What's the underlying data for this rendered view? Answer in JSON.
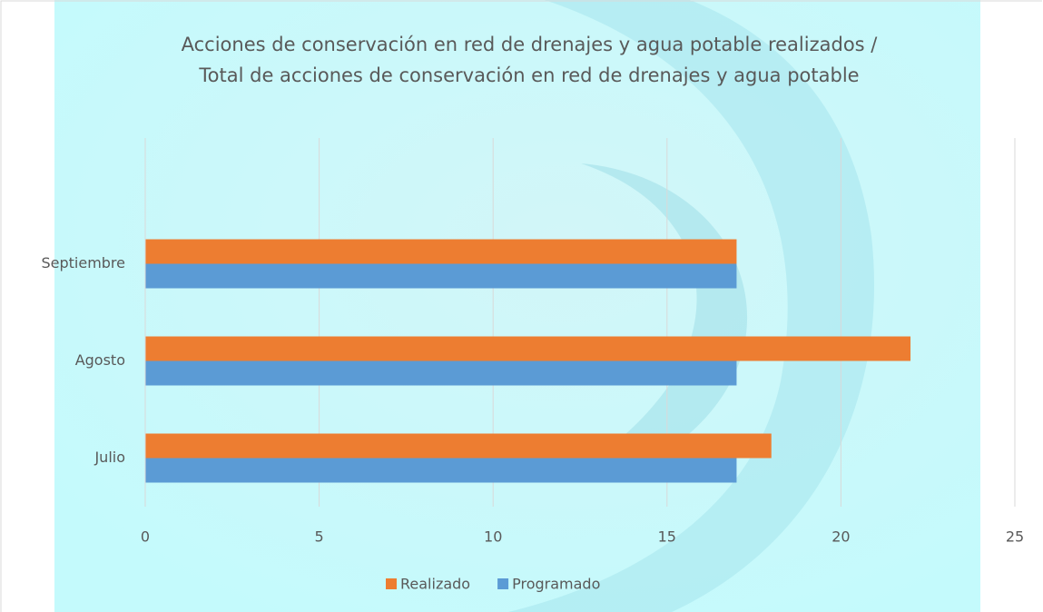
{
  "chart_data": {
    "type": "bar",
    "orientation": "horizontal",
    "title": [
      "Acciones de conservación en red de drenajes y agua potable realizados /",
      "Total de acciones de conservación en red de drenajes y agua potable"
    ],
    "categories": [
      "Julio",
      "Agosto",
      "Septiembre"
    ],
    "series": [
      {
        "name": "Realizado",
        "color": "#ed7d31",
        "values": [
          18,
          22,
          17
        ]
      },
      {
        "name": "Programado",
        "color": "#5b9bd5",
        "values": [
          17,
          17,
          17
        ]
      }
    ],
    "xlim": [
      0,
      25
    ],
    "xticks": [
      0,
      5,
      10,
      15,
      20,
      25
    ],
    "grid": true,
    "legend": "bottom"
  }
}
